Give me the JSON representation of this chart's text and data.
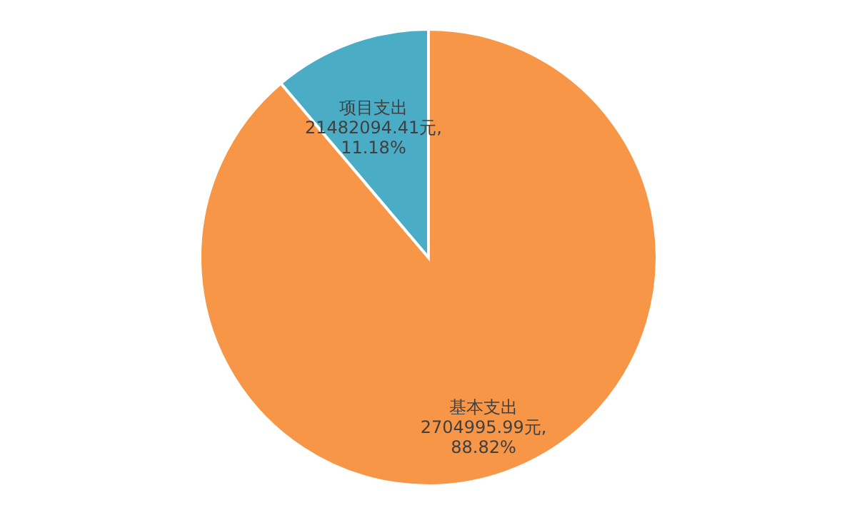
{
  "chart_data": {
    "type": "pie",
    "categories": [
      "基本支出",
      "项目支出"
    ],
    "values": [
      88.82,
      11.18
    ],
    "colors": [
      "#f79646",
      "#4bacc6"
    ],
    "value_labels": [
      "2704995.99元,\n88.82%",
      "21482094.41元,\n11.18%"
    ],
    "legend": false
  }
}
